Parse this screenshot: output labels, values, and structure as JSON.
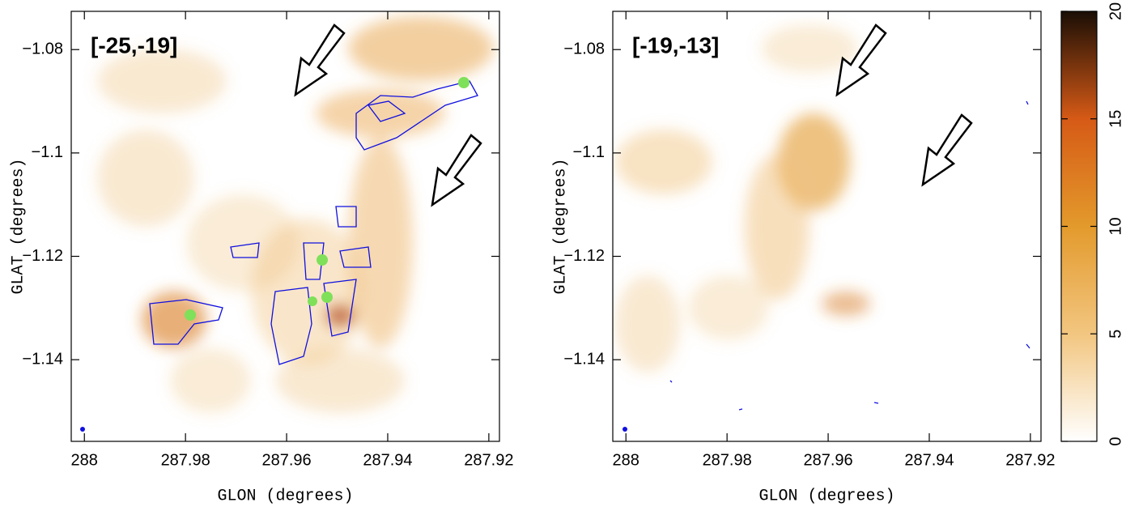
{
  "chart_data": [
    {
      "type": "image",
      "label": "[-25,-19]",
      "x_label": "GLON (degrees)",
      "y_label": "GLAT (degrees)",
      "xlim": [
        288.0026,
        287.9179
      ],
      "ylim": [
        -1.1558,
        -1.0726
      ],
      "xticks": [
        288,
        287.98,
        287.96,
        287.94,
        287.92
      ],
      "yticks": [
        {
          "value": -1.08,
          "label": "−1.08"
        },
        {
          "value": -1.1,
          "label": "−1.1"
        },
        {
          "value": -1.12,
          "label": "−1.12"
        },
        {
          "value": -1.14,
          "label": "−1.14"
        }
      ]
    },
    {
      "type": "image",
      "label": "[-19,-13]",
      "x_label": "GLON (degrees)",
      "y_label": "GLAT (degrees)",
      "xlim": [
        288.0026,
        287.9179
      ],
      "ylim": [
        -1.1558,
        -1.0726
      ],
      "xticks": [
        288,
        287.98,
        287.96,
        287.94,
        287.92
      ],
      "yticks": [
        {
          "value": -1.08,
          "label": "−1.08"
        },
        {
          "value": -1.1,
          "label": "−1.1"
        },
        {
          "value": -1.12,
          "label": "−1.12"
        },
        {
          "value": -1.14,
          "label": "−1.14"
        }
      ]
    },
    {
      "type": "colorbar",
      "ylim": [
        0,
        20
      ],
      "yticks": [
        0,
        5,
        10,
        15,
        20
      ],
      "colors": [
        "#ffffff",
        "#f2c680",
        "#e39a2c",
        "#d65a16",
        "#1a0e05"
      ]
    }
  ]
}
